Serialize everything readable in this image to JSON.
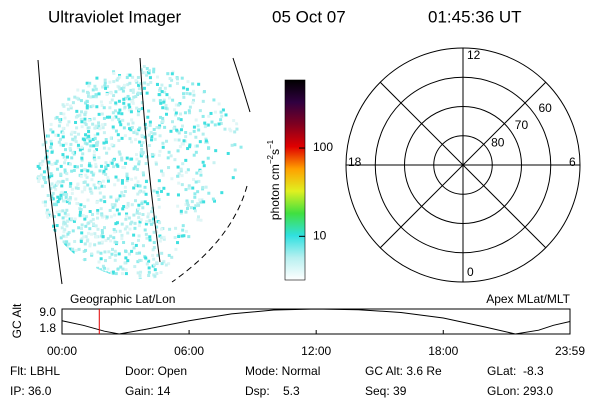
{
  "header": {
    "instrument": "Ultraviolet Imager",
    "date": "05 Oct 07",
    "time": "01:45:36 UT"
  },
  "colorbar": {
    "label": [
      "photon cm",
      "−2",
      "s",
      "−1"
    ],
    "log": true,
    "lim": [
      3.2,
      590
    ],
    "ticks": [
      10,
      100
    ],
    "colors": [
      "#ffffff",
      "#b8f0f0",
      "#30e0e0",
      "#40e040",
      "#e0f020",
      "#ffa000",
      "#e00000",
      "#800020",
      "#300040",
      "#000000"
    ]
  },
  "polar": {
    "mlt_labels": {
      "top": "12",
      "right": "6",
      "bottom": "0",
      "left": "18"
    },
    "circles": [
      80,
      70,
      60,
      50
    ],
    "lat_labels": [
      "80",
      "70",
      "60"
    ]
  },
  "timeline": {
    "left_title": "Geographic Lat/Lon",
    "right_title": "Apex MLat/MLT",
    "ylabel": "GC Alt",
    "ylim": [
      1.8,
      9.0
    ],
    "yticks": [
      {
        "value": 9.0,
        "label": "9.0"
      },
      1.8
    ],
    "xlim": [
      0,
      23.983
    ],
    "xticks": [
      {
        "value": 0,
        "label": "00:00"
      },
      {
        "value": 6,
        "label": "06:00"
      },
      {
        "value": 12,
        "label": "12:00"
      },
      {
        "value": 18,
        "label": "18:00"
      },
      {
        "value": 23.983,
        "label": "23:59"
      }
    ],
    "x": [
      0,
      1,
      2,
      2.7,
      4,
      6,
      8,
      10,
      12,
      14,
      16,
      18,
      20,
      21.4,
      22.5,
      23.2,
      23.983
    ],
    "values": [
      5.6,
      4.3,
      2.6,
      1.8,
      3.2,
      5.6,
      7.6,
      8.7,
      9.0,
      8.8,
      8.0,
      6.4,
      3.8,
      1.8,
      2.9,
      4.3,
      5.4
    ],
    "current": 1.76,
    "current_color": "#e00000"
  },
  "footer": [
    [
      "Flt: LBHL",
      "Door: Open",
      "Mode: Normal",
      "GC Alt: 3.6 Re",
      "GLat:  -8.3"
    ],
    [
      "IP: 36.0",
      "Gain: 14",
      "Dsp:    5.3",
      "Seq: 39",
      "GLon: 293.0"
    ]
  ]
}
